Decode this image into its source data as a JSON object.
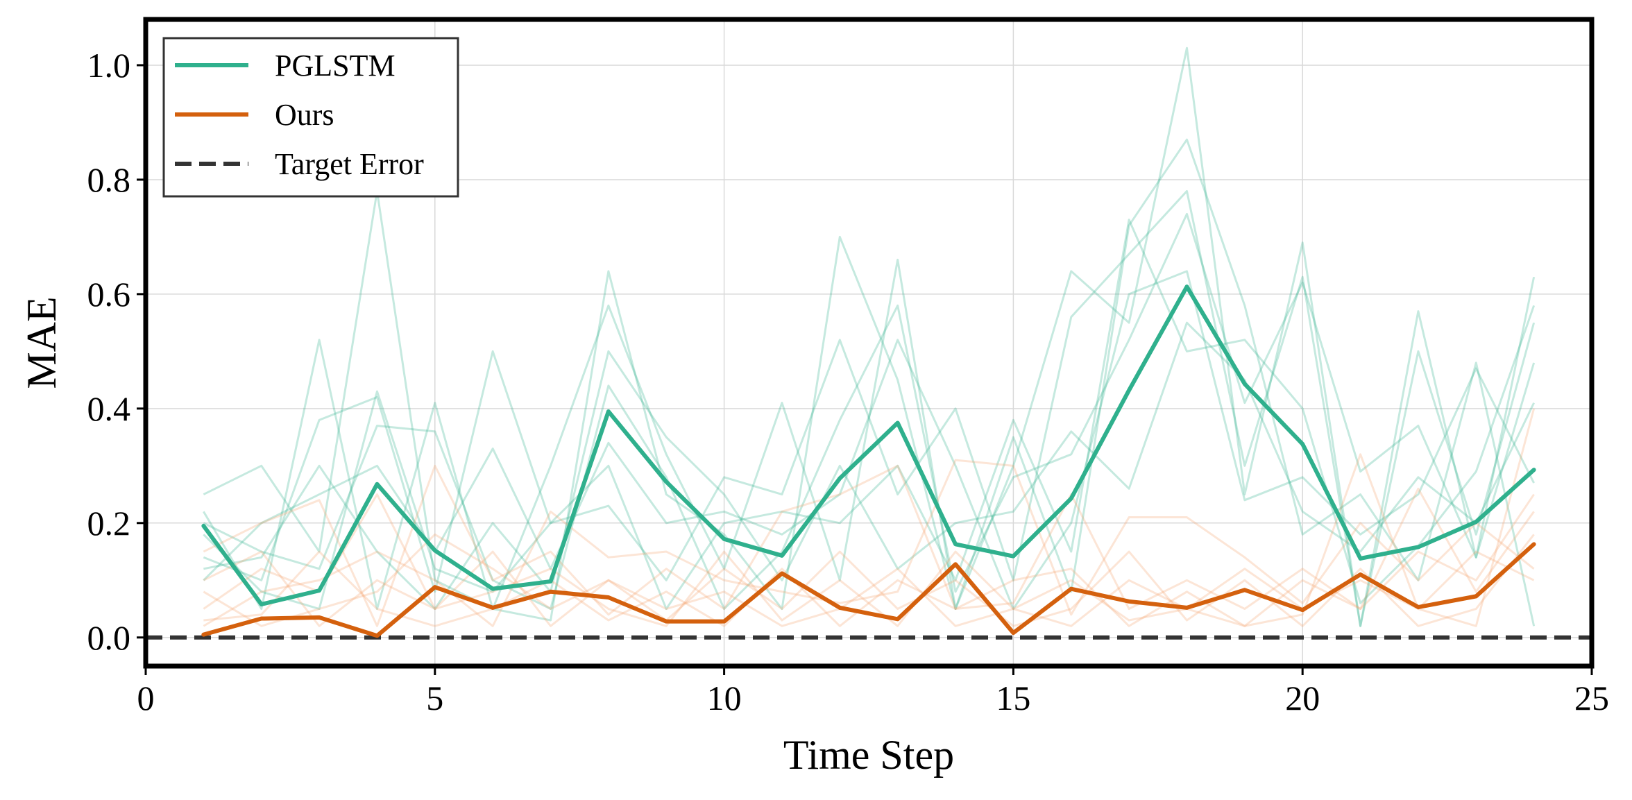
{
  "chart_data": {
    "type": "line",
    "title": "",
    "xlabel": "Time Step",
    "ylabel": "MAE",
    "xlim": [
      0,
      25
    ],
    "ylim": [
      -0.05,
      1.08
    ],
    "xticks": [
      0,
      5,
      10,
      15,
      20,
      25
    ],
    "xtick_labels": [
      "0",
      "5",
      "10",
      "15",
      "20",
      "25"
    ],
    "yticks": [
      0.0,
      0.2,
      0.4,
      0.6,
      0.8,
      1.0
    ],
    "ytick_labels": [
      "0.0",
      "0.2",
      "0.4",
      "0.6",
      "0.8",
      "1.0"
    ],
    "grid": true,
    "legend_position": "top-left",
    "x": [
      1,
      2,
      3,
      4,
      5,
      6,
      7,
      8,
      9,
      10,
      11,
      12,
      13,
      14,
      15,
      16,
      17,
      18,
      19,
      20,
      21,
      22,
      23,
      24
    ],
    "series": [
      {
        "name": "PGLSTM",
        "color": "#2fb08d",
        "style": "solid",
        "values": [
          0.195,
          0.058,
          0.082,
          0.268,
          0.152,
          0.085,
          0.098,
          0.395,
          0.272,
          0.172,
          0.143,
          0.278,
          0.375,
          0.163,
          0.142,
          0.243,
          0.432,
          0.613,
          0.443,
          0.338,
          0.138,
          0.158,
          0.202,
          0.293
        ]
      },
      {
        "name": "Ours",
        "color": "#d4600d",
        "style": "solid",
        "values": [
          0.005,
          0.033,
          0.035,
          0.003,
          0.088,
          0.052,
          0.08,
          0.07,
          0.028,
          0.028,
          0.112,
          0.052,
          0.032,
          0.128,
          0.008,
          0.085,
          0.063,
          0.052,
          0.083,
          0.048,
          0.11,
          0.053,
          0.072,
          0.163
        ]
      },
      {
        "name": "Target Error",
        "color": "#333333",
        "style": "dashed",
        "values": [
          0,
          0,
          0,
          0,
          0,
          0,
          0,
          0,
          0,
          0,
          0,
          0,
          0,
          0,
          0,
          0,
          0,
          0,
          0,
          0,
          0,
          0,
          0,
          0
        ]
      }
    ],
    "background_runs": [
      {
        "series": "PGLSTM",
        "color": "#2fb08d",
        "runs": [
          [
            0.25,
            0.3,
            0.15,
            0.78,
            0.1,
            0.05,
            0.03,
            0.64,
            0.25,
            0.18,
            0.05,
            0.7,
            0.45,
            0.05,
            0.3,
            0.64,
            0.55,
            1.03,
            0.25,
            0.69,
            0.02,
            0.57,
            0.14,
            0.63
          ],
          [
            0.22,
            0.05,
            0.52,
            0.05,
            0.41,
            0.05,
            0.3,
            0.58,
            0.32,
            0.12,
            0.41,
            0.1,
            0.66,
            0.05,
            0.35,
            0.08,
            0.72,
            0.87,
            0.58,
            0.18,
            0.25,
            0.1,
            0.48,
            0.02
          ],
          [
            0.14,
            0.1,
            0.38,
            0.42,
            0.08,
            0.5,
            0.2,
            0.23,
            0.1,
            0.28,
            0.25,
            0.52,
            0.25,
            0.4,
            0.1,
            0.56,
            0.67,
            0.78,
            0.3,
            0.63,
            0.02,
            0.5,
            0.18,
            0.55
          ],
          [
            0.2,
            0.15,
            0.12,
            0.37,
            0.36,
            0.1,
            0.05,
            0.44,
            0.28,
            0.05,
            0.15,
            0.38,
            0.58,
            0.08,
            0.28,
            0.32,
            0.52,
            0.74,
            0.41,
            0.62,
            0.29,
            0.37,
            0.14,
            0.48
          ],
          [
            0.1,
            0.2,
            0.25,
            0.3,
            0.15,
            0.33,
            0.12,
            0.34,
            0.2,
            0.22,
            0.18,
            0.25,
            0.52,
            0.3,
            0.05,
            0.2,
            0.6,
            0.64,
            0.24,
            0.28,
            0.18,
            0.25,
            0.47,
            0.27
          ],
          [
            0.18,
            0.08,
            0.05,
            0.43,
            0.12,
            0.08,
            0.2,
            0.3,
            0.05,
            0.2,
            0.22,
            0.2,
            0.3,
            0.1,
            0.38,
            0.15,
            0.73,
            0.5,
            0.52,
            0.4,
            0.06,
            0.16,
            0.29,
            0.58
          ],
          [
            0.12,
            0.14,
            0.3,
            0.15,
            0.05,
            0.2,
            0.08,
            0.5,
            0.35,
            0.25,
            0.1,
            0.3,
            0.12,
            0.2,
            0.22,
            0.36,
            0.26,
            0.55,
            0.45,
            0.22,
            0.15,
            0.28,
            0.2,
            0.41
          ]
        ]
      },
      {
        "series": "Ours",
        "color": "#f4a36b",
        "runs": [
          [
            0.05,
            0.12,
            0.08,
            0.25,
            0.05,
            0.15,
            0.02,
            0.1,
            0.05,
            0.08,
            0.02,
            0.05,
            0.12,
            0.02,
            0.05,
            0.1,
            0.03,
            0.05,
            0.02,
            0.04,
            0.32,
            0.05,
            0.02,
            0.4
          ],
          [
            0.15,
            0.2,
            0.24,
            0.02,
            0.3,
            0.1,
            0.15,
            0.04,
            0.12,
            0.05,
            0.22,
            0.25,
            0.3,
            0.05,
            0.06,
            0.25,
            0.05,
            0.1,
            0.05,
            0.12,
            0.05,
            0.26,
            0.08,
            0.22
          ],
          [
            0.02,
            0.08,
            0.1,
            0.15,
            0.1,
            0.02,
            0.22,
            0.14,
            0.15,
            0.1,
            0.08,
            0.06,
            0.08,
            0.31,
            0.3,
            0.04,
            0.21,
            0.21,
            0.14,
            0.06,
            0.2,
            0.1,
            0.2,
            0.12
          ],
          [
            0.08,
            0.02,
            0.05,
            0.08,
            0.18,
            0.12,
            0.05,
            0.1,
            0.03,
            0.12,
            0.05,
            0.15,
            0.05,
            0.1,
            0.02,
            0.05,
            0.15,
            0.03,
            0.1,
            0.02,
            0.12,
            0.02,
            0.05,
            0.18
          ],
          [
            0.03,
            0.04,
            0.15,
            0.05,
            0.02,
            0.05,
            0.1,
            0.03,
            0.08,
            0.02,
            0.12,
            0.02,
            0.1,
            0.05,
            0.1,
            0.12,
            0.02,
            0.08,
            0.02,
            0.1,
            0.05,
            0.15,
            0.1,
            0.25
          ],
          [
            0.1,
            0.15,
            0.02,
            0.1,
            0.05,
            0.08,
            0.12,
            0.05,
            0.02,
            0.15,
            0.03,
            0.1,
            0.02,
            0.15,
            0.05,
            0.02,
            0.1,
            0.05,
            0.12,
            0.05,
            0.1,
            0.05,
            0.15,
            0.1
          ]
        ]
      }
    ]
  }
}
